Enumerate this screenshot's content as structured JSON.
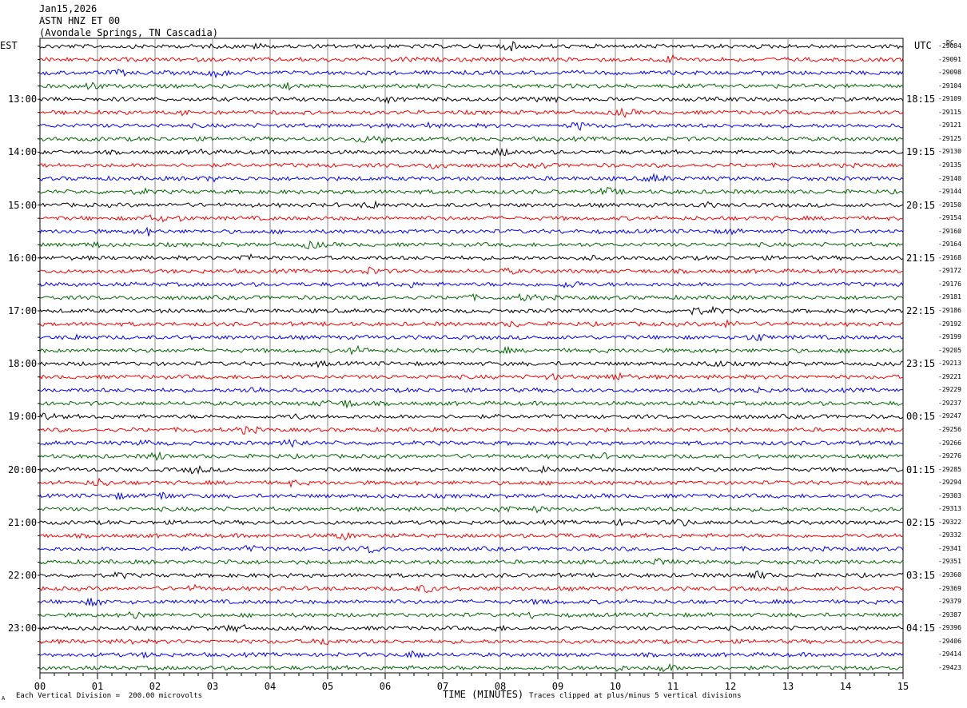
{
  "header": {
    "date": "Jan15,2026",
    "station": "ASTN HNZ ET 00",
    "location": "(Avondale Springs, TN Cascadia)"
  },
  "left_tz": "EST",
  "right_tz": "UTC",
  "corner_mark": "DC",
  "footer": {
    "scale_note": "Each Vertical Division =  200.00 microvolts",
    "clip_note": "Traces clipped at plus/minus 5 vertical divisions",
    "xaxis_title": "TIME (MINUTES)",
    "corner_glyph": "A"
  },
  "chart_data": {
    "type": "line",
    "xlabel": "TIME (MINUTES)",
    "xlim": [
      0,
      15
    ],
    "x_ticks": [
      "00",
      "01",
      "02",
      "03",
      "04",
      "05",
      "06",
      "07",
      "08",
      "09",
      "10",
      "11",
      "12",
      "13",
      "14",
      "15"
    ],
    "trace_colors": [
      "#000000",
      "#ff0000",
      "#0000ff",
      "#006600"
    ],
    "left_hour_labels": [
      {
        "row": 4,
        "label": "13:00"
      },
      {
        "row": 8,
        "label": "14:00"
      },
      {
        "row": 12,
        "label": "15:00"
      },
      {
        "row": 16,
        "label": "16:00"
      },
      {
        "row": 20,
        "label": "17:00"
      },
      {
        "row": 24,
        "label": "18:00"
      },
      {
        "row": 28,
        "label": "19:00"
      },
      {
        "row": 32,
        "label": "20:00"
      },
      {
        "row": 36,
        "label": "21:00"
      },
      {
        "row": 40,
        "label": "22:00"
      },
      {
        "row": 44,
        "label": "23:00"
      }
    ],
    "right_hour_labels": [
      {
        "row": 4,
        "label": "18:15"
      },
      {
        "row": 8,
        "label": "19:15"
      },
      {
        "row": 12,
        "label": "20:15"
      },
      {
        "row": 16,
        "label": "21:15"
      },
      {
        "row": 20,
        "label": "22:15"
      },
      {
        "row": 24,
        "label": "23:15"
      },
      {
        "row": 28,
        "label": "00:15"
      },
      {
        "row": 32,
        "label": "01:15"
      },
      {
        "row": 36,
        "label": "02:15"
      },
      {
        "row": 40,
        "label": "03:15"
      },
      {
        "row": 44,
        "label": "04:15"
      }
    ],
    "trace_counts": [
      "-29084",
      "-29091",
      "-29098",
      "-29104",
      "-29109",
      "-29115",
      "-29121",
      "-29125",
      "-29130",
      "-29135",
      "-29140",
      "-29144",
      "-29150",
      "-29154",
      "-29160",
      "-29164",
      "-29168",
      "-29172",
      "-29176",
      "-29181",
      "-29186",
      "-29192",
      "-29199",
      "-29205",
      "-29213",
      "-29221",
      "-29229",
      "-29237",
      "-29247",
      "-29256",
      "-29266",
      "-29276",
      "-29285",
      "-29294",
      "-29303",
      "-29313",
      "-29322",
      "-29332",
      "-29341",
      "-29351",
      "-29360",
      "-29369",
      "-29379",
      "-29387",
      "-29396",
      "-29406",
      "-29414",
      "-29423"
    ]
  }
}
